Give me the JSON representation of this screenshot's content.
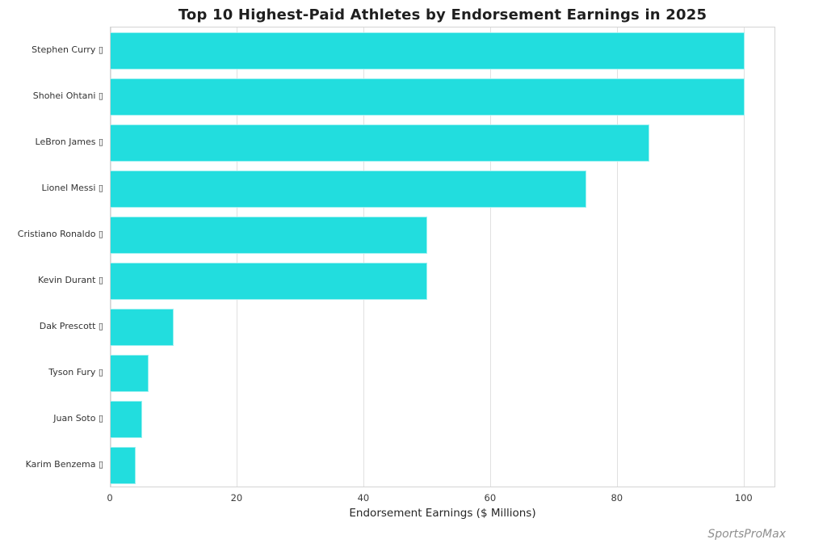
{
  "chart_data": {
    "type": "bar",
    "orientation": "horizontal",
    "title": "Top 10 Highest-Paid Athletes by Endorsement Earnings in 2025",
    "xlabel": "Endorsement Earnings ($ Millions)",
    "ylabel": "",
    "categories": [
      "Stephen Curry ▯",
      "Shohei Ohtani ▯",
      "LeBron James ▯",
      "Lionel Messi ▯",
      "Cristiano Ronaldo ▯",
      "Kevin Durant ▯",
      "Dak Prescott ▯",
      "Tyson Fury ▯",
      "Juan Soto ▯",
      "Karim Benzema ▯"
    ],
    "values": [
      100,
      100,
      85,
      75,
      50,
      50,
      10,
      6,
      5,
      4
    ],
    "xlim": [
      0,
      105
    ],
    "xticks": [
      0,
      20,
      40,
      60,
      80,
      100
    ],
    "grid": true,
    "legend": false,
    "bar_color": "#22DDDE",
    "grid_color": "#e0e0e0",
    "border_color": "#d4d4d4",
    "watermark": "SportsProMax"
  }
}
